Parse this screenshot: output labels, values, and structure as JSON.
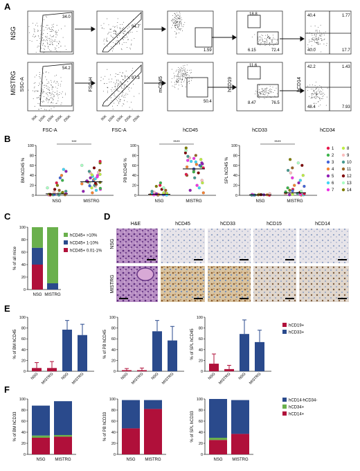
{
  "panels": {
    "A": {
      "letter": "A",
      "row_labels": [
        "NSG",
        "MISTRG"
      ],
      "axis_labels": {
        "ssc": "SSC-A",
        "fsc": "FSC-A",
        "fsch": "FSC-H",
        "mcd45": "mCD45",
        "hcd45": "hCD45",
        "hcd19": "hCD19",
        "hcd33": "hCD33",
        "hcd14": "hCD14",
        "hcd34": "hCD34"
      },
      "ticks_k": [
        "50K",
        "100K",
        "150K",
        "200K",
        "250K"
      ],
      "gates": {
        "NSG": {
          "p1": "34.0",
          "p2": "94.7",
          "p3": "1.59",
          "p4a": "18.8",
          "p4b": "6.15",
          "p4c": "72.4",
          "p5": [
            "40.4",
            "1.77",
            "40.0",
            "17.7"
          ]
        },
        "MISTRG": {
          "p1": "54.2",
          "p2": "97.3",
          "p3": "50.4",
          "p4a": "11.6",
          "p4b": "8.47",
          "p4c": "76.5",
          "p5": [
            "42.2",
            "1.43",
            "48.4",
            "7.93"
          ]
        }
      }
    },
    "B": {
      "letter": "B",
      "significance": [
        "***",
        "****",
        "****"
      ],
      "legend_title_numbers": [
        "1",
        "2",
        "3",
        "4",
        "5",
        "6",
        "7",
        "8",
        "9",
        "10",
        "11",
        "12",
        "13",
        "14"
      ],
      "legend_colors": [
        "#e6194b",
        "#3cb44b",
        "#4363d8",
        "#f58231",
        "#911eb4",
        "#42d4f4",
        "#f032e6",
        "#bfef45",
        "#fabebe",
        "#469990",
        "#9a6324",
        "#800000",
        "#aaffc3",
        "#808000"
      ]
    },
    "C": {
      "letter": "C",
      "legend": [
        "hCD45+ >10%",
        "hCD45+ 1-10%",
        "hCD45+ 0.01-1%"
      ]
    },
    "D": {
      "letter": "D",
      "column_labels": [
        "H&E",
        "hCD45",
        "hCD33",
        "hCD15",
        "hCD14"
      ],
      "row_labels": [
        "NSG",
        "MISTRG"
      ]
    },
    "E": {
      "letter": "E",
      "legend": [
        "hCD19+",
        "hCD33+"
      ]
    },
    "F": {
      "letter": "F",
      "legend": [
        "hCD14-hCD34-",
        "hCD34+",
        "hCD14+"
      ]
    }
  },
  "colors": {
    "red": "#b0103a",
    "blue": "#2a4a8c",
    "green": "#6ab04c"
  },
  "chart_data": [
    {
      "id": "B-BM",
      "type": "scatter",
      "ylabel": "BM hCD45 %",
      "ylim": [
        0,
        100
      ],
      "yticks": [
        "0",
        "20",
        "40",
        "60",
        "80",
        "100"
      ],
      "categories": [
        "NSG",
        "MISTRG"
      ],
      "medians": [
        3,
        27
      ],
      "points": {
        "NSG": [
          0.5,
          1,
          1.5,
          2,
          2,
          3,
          4,
          5,
          6,
          8,
          10,
          12,
          15,
          20,
          25,
          30,
          35,
          40,
          48,
          52,
          1,
          2,
          3,
          0.5,
          1,
          2,
          4,
          6
        ],
        "MISTRG": [
          5,
          8,
          10,
          12,
          15,
          18,
          20,
          22,
          24,
          25,
          26,
          27,
          28,
          30,
          32,
          35,
          38,
          40,
          42,
          45,
          48,
          50,
          55,
          60,
          65,
          68,
          14,
          19,
          23,
          29,
          33,
          37,
          41,
          46
        ]
      }
    },
    {
      "id": "B-PB",
      "type": "scatter",
      "ylabel": "PB hCD45 %",
      "ylim": [
        0,
        100
      ],
      "yticks": [
        "0",
        "20",
        "40",
        "60",
        "80",
        "100"
      ],
      "categories": [
        "NSG",
        "MISTRG"
      ],
      "medians": [
        2,
        53
      ],
      "points": {
        "NSG": [
          0.5,
          1,
          1,
          2,
          2,
          3,
          4,
          5,
          6,
          8,
          10,
          12,
          15,
          18,
          20,
          25,
          1,
          2,
          3,
          0.5,
          1,
          4
        ],
        "MISTRG": [
          5,
          10,
          15,
          20,
          25,
          30,
          35,
          40,
          45,
          50,
          52,
          55,
          58,
          60,
          62,
          65,
          68,
          70,
          72,
          75,
          78,
          80,
          85,
          90,
          95,
          42,
          47,
          53,
          57,
          63,
          67,
          74
        ]
      }
    },
    {
      "id": "B-SPL",
      "type": "scatter",
      "ylabel": "SPL hCD45 %",
      "ylim": [
        0,
        100
      ],
      "yticks": [
        "0",
        "20",
        "40",
        "60",
        "80",
        "100"
      ],
      "categories": [
        "NSG",
        "MISTRG"
      ],
      "medians": [
        1,
        5
      ],
      "points": {
        "NSG": [
          0.2,
          0.5,
          0.5,
          1,
          1,
          1.5,
          2,
          2,
          3,
          0.3,
          0.8,
          1.2
        ],
        "MISTRG": [
          0.5,
          1,
          1,
          2,
          2,
          3,
          4,
          5,
          6,
          8,
          10,
          12,
          15,
          18,
          20,
          25,
          30,
          35,
          40,
          45,
          50,
          55,
          60,
          65,
          72,
          3,
          7,
          9
        ]
      }
    },
    {
      "id": "C",
      "type": "bar",
      "ylabel": "% of all mice",
      "ylim": [
        0,
        100
      ],
      "yticks": [
        "0",
        "20",
        "40",
        "60",
        "80",
        "100"
      ],
      "categories": [
        "NSG",
        "MISTRG"
      ],
      "series": [
        {
          "name": "hCD45+ 0.01-1%",
          "values": [
            40,
            0
          ]
        },
        {
          "name": "hCD45+ 1-10%",
          "values": [
            27,
            10
          ]
        },
        {
          "name": "hCD45+ >10%",
          "values": [
            33,
            90
          ]
        }
      ]
    },
    {
      "id": "E-BM",
      "type": "bar",
      "ylabel": "% of BM hCD45",
      "ylim": [
        0,
        100
      ],
      "yticks": [
        "0",
        "20",
        "40",
        "60",
        "80",
        "100"
      ],
      "categories": [
        "NSG",
        "MISTRG",
        "NSG",
        "MISTRG"
      ],
      "colors": [
        "red",
        "red",
        "blue",
        "blue"
      ],
      "values": [
        6,
        6,
        77,
        67
      ],
      "errors": [
        10,
        12,
        17,
        20
      ]
    },
    {
      "id": "E-PB",
      "type": "bar",
      "ylabel": "% of PB hCD45",
      "ylim": [
        0,
        100
      ],
      "yticks": [
        "0",
        "20",
        "40",
        "60",
        "80",
        "100"
      ],
      "categories": [
        "NSG",
        "MISTRG",
        "NSG",
        "MISTRG"
      ],
      "colors": [
        "red",
        "red",
        "blue",
        "blue"
      ],
      "values": [
        2,
        2,
        74,
        57
      ],
      "errors": [
        3,
        4,
        20,
        26
      ]
    },
    {
      "id": "E-SPL",
      "type": "bar",
      "ylabel": "% of SPL hCD45",
      "ylim": [
        0,
        100
      ],
      "yticks": [
        "0",
        "20",
        "40",
        "60",
        "80",
        "100"
      ],
      "categories": [
        "NSG",
        "MISTRG",
        "NSG",
        "MISTRG"
      ],
      "colors": [
        "red",
        "red",
        "blue",
        "blue"
      ],
      "values": [
        14,
        4,
        69,
        54
      ],
      "errors": [
        18,
        7,
        26,
        22
      ]
    },
    {
      "id": "F-BM",
      "type": "bar",
      "ylabel": "% of BM hCD33",
      "ylim": [
        0,
        100
      ],
      "yticks": [
        "0",
        "20",
        "40",
        "60",
        "80",
        "100"
      ],
      "categories": [
        "NSG",
        "MISTRG"
      ],
      "series": [
        {
          "name": "hCD14+",
          "values": [
            30,
            32
          ]
        },
        {
          "name": "hCD34+",
          "values": [
            4,
            3
          ]
        },
        {
          "name": "hCD14-hCD34-",
          "values": [
            54,
            61
          ]
        }
      ]
    },
    {
      "id": "F-PB",
      "type": "bar",
      "ylabel": "% of PB hCD33",
      "ylim": [
        0,
        100
      ],
      "yticks": [
        "0",
        "20",
        "40",
        "60",
        "80",
        "100"
      ],
      "categories": [
        "NSG",
        "MISTRG"
      ],
      "series": [
        {
          "name": "hCD14+",
          "values": [
            47,
            82
          ]
        },
        {
          "name": "hCD34+",
          "values": [
            0,
            0
          ]
        },
        {
          "name": "hCD14-hCD34-",
          "values": [
            51,
            16
          ]
        }
      ]
    },
    {
      "id": "F-SPL",
      "type": "bar",
      "ylabel": "% of SPL hCD33",
      "ylim": [
        0,
        100
      ],
      "yticks": [
        "0",
        "20",
        "40",
        "60",
        "80",
        "100"
      ],
      "categories": [
        "NSG",
        "MISTRG"
      ],
      "series": [
        {
          "name": "hCD14+",
          "values": [
            26,
            37
          ]
        },
        {
          "name": "hCD34+",
          "values": [
            4,
            0
          ]
        },
        {
          "name": "hCD14-hCD34-",
          "values": [
            70,
            61
          ]
        }
      ]
    }
  ]
}
